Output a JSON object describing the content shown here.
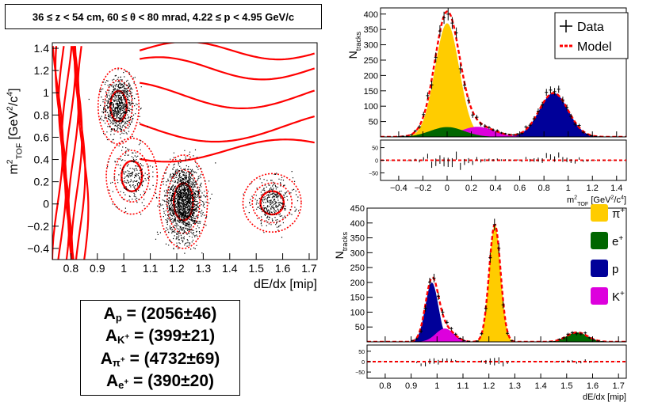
{
  "header": {
    "kinematic_bin": "36 ≤ z < 54 cm, 60 ≤ θ < 80 mrad, 4.22 ≤ p < 4.95 GeV/c"
  },
  "yields": [
    {
      "sym": "A",
      "sub": "p",
      "sup": "",
      "value": "= (2056±46)"
    },
    {
      "sym": "A",
      "sub": "K",
      "sup": "+",
      "value": "= (399±21)"
    },
    {
      "sym": "A",
      "sub": "π",
      "sup": "+",
      "value": "= (4732±69)"
    },
    {
      "sym": "A",
      "sub": "e",
      "sup": "+",
      "value": "= (390±20)"
    }
  ],
  "colors": {
    "contour": "#ff0000",
    "model": "#ff0000",
    "data": "#000000",
    "pion": "#ffcc00",
    "electron": "#006600",
    "proton": "#000099",
    "kaon": "#dd00dd"
  },
  "chart_data": [
    {
      "type": "scatter",
      "title": "",
      "xlabel": "dE/dx [mip]",
      "ylabel": "m²TOF [GeV²/c⁴]",
      "ylabel_parts": {
        "main": "m",
        "sup": "2",
        "sub": "TOF",
        "unit_open": " [GeV",
        "unit_sup": "2",
        "unit_mid": "/c",
        "unit_sup2": "4",
        "unit_close": "]"
      },
      "xlim": [
        0.73,
        1.73
      ],
      "ylim": [
        -0.5,
        1.45
      ],
      "xticks": [
        0.8,
        0.9,
        1.0,
        1.1,
        1.2,
        1.3,
        1.4,
        1.5,
        1.6,
        1.7
      ],
      "xtick_labels": [
        "0.8",
        "0.9",
        "1",
        "1.1",
        "1.2",
        "1.3",
        "1.4",
        "1.5",
        "1.6",
        "1.7"
      ],
      "yticks": [
        -0.4,
        -0.2,
        0,
        0.2,
        0.4,
        0.6,
        0.8,
        1.0,
        1.2,
        1.4
      ],
      "ytick_labels": [
        "−0.4",
        "−0.2",
        "0",
        "0.2",
        "0.4",
        "0.6",
        "0.8",
        "1",
        "1.2",
        "1.4"
      ],
      "clusters": [
        {
          "name": "p",
          "x": 0.98,
          "y": 0.88,
          "sx": 0.028,
          "sy": 0.13,
          "n": 700
        },
        {
          "name": "K+",
          "x": 1.03,
          "y": 0.25,
          "sx": 0.035,
          "sy": 0.13,
          "n": 220
        },
        {
          "name": "pi+",
          "x": 1.225,
          "y": 0.02,
          "sx": 0.033,
          "sy": 0.16,
          "n": 1600
        },
        {
          "name": "e+",
          "x": 1.56,
          "y": 0.01,
          "sx": 0.04,
          "sy": 0.1,
          "n": 330
        }
      ],
      "grid": false
    },
    {
      "type": "area",
      "title": "",
      "xlabel": "m²TOF [GeV²/c⁴]",
      "xlabel_parts": {
        "main": "m",
        "sup": "2",
        "sub": "TOF",
        "unit_open": " [GeV",
        "unit_sup": "2",
        "unit_mid": "/c",
        "unit_sup2": "4",
        "unit_close": "]"
      },
      "ylabel": "Ntracks",
      "ylabel_parts": {
        "main": "N",
        "sub": "tracks"
      },
      "xlim": [
        -0.55,
        1.48
      ],
      "ylim": [
        0,
        420
      ],
      "xticks": [
        -0.4,
        -0.2,
        0,
        0.2,
        0.4,
        0.6,
        0.8,
        1.0,
        1.2,
        1.4
      ],
      "xtick_labels": [
        "−0.4",
        "−0.2",
        "0",
        "0.2",
        "0.4",
        "0.6",
        "0.8",
        "1",
        "1.2",
        "1.4"
      ],
      "yticks": [
        0,
        50,
        100,
        150,
        200,
        250,
        300,
        350,
        400
      ],
      "ytick_labels": [
        "",
        "50",
        "100",
        "150",
        "200",
        "250",
        "300",
        "350",
        "400"
      ],
      "components": [
        {
          "name": "pi+",
          "amp": 370,
          "mean": 0.0,
          "sigma": 0.1
        },
        {
          "name": "e+",
          "amp": 32,
          "mean": 0.0,
          "sigma": 0.14
        },
        {
          "name": "K+",
          "amp": 33,
          "mean": 0.25,
          "sigma": 0.14
        },
        {
          "name": "p",
          "amp": 143,
          "mean": 0.88,
          "sigma": 0.12
        }
      ],
      "legend": [
        {
          "label": "Data"
        },
        {
          "label": "Model"
        }
      ],
      "legend_position": "top-right",
      "residual_yticks": [
        "50",
        "0",
        "−50"
      ],
      "grid": false
    },
    {
      "type": "area",
      "title": "",
      "xlabel": "dE/dx [mip]",
      "ylabel": "Ntracks",
      "ylabel_parts": {
        "main": "N",
        "sub": "tracks"
      },
      "xlim": [
        0.73,
        1.73
      ],
      "ylim": [
        0,
        450
      ],
      "xticks": [
        0.8,
        0.9,
        1.0,
        1.1,
        1.2,
        1.3,
        1.4,
        1.5,
        1.6,
        1.7
      ],
      "xtick_labels": [
        "0.8",
        "0.9",
        "1",
        "1.1",
        "1.2",
        "1.3",
        "1.4",
        "1.5",
        "1.6",
        "1.7"
      ],
      "yticks": [
        0,
        50,
        100,
        150,
        200,
        250,
        300,
        350,
        400,
        450
      ],
      "ytick_labels": [
        "",
        "50",
        "100",
        "150",
        "200",
        "250",
        "300",
        "350",
        "400",
        "450"
      ],
      "components": [
        {
          "name": "p",
          "amp": 200,
          "mean": 0.98,
          "sigma": 0.025
        },
        {
          "name": "K+",
          "amp": 45,
          "mean": 1.03,
          "sigma": 0.035
        },
        {
          "name": "pi+",
          "amp": 395,
          "mean": 1.223,
          "sigma": 0.022
        },
        {
          "name": "e+",
          "amp": 32,
          "mean": 1.54,
          "sigma": 0.04
        }
      ],
      "legend": [
        {
          "label": "π",
          "sup": "+",
          "key": "pion"
        },
        {
          "label": "e",
          "sup": "+",
          "key": "electron"
        },
        {
          "label": "p",
          "sup": "",
          "key": "proton"
        },
        {
          "label": "K",
          "sup": "+",
          "key": "kaon"
        }
      ],
      "legend_position": "right",
      "residual_yticks": [
        "50",
        "0",
        "−50"
      ],
      "grid": false
    }
  ]
}
